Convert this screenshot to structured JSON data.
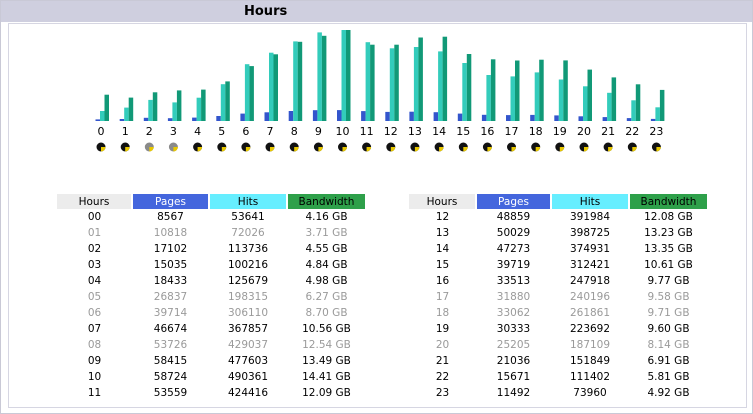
{
  "title": "Hours",
  "colors": {
    "pages": "#3355cc",
    "hits": "#33ccbb",
    "bandwidth": "#119977",
    "header_bg": "#cfcfdf"
  },
  "table": {
    "headers": [
      "Hours",
      "Pages",
      "Hits",
      "Bandwidth"
    ],
    "left": [
      [
        "00",
        "8567",
        "53641",
        "4.16 GB"
      ],
      [
        "01",
        "10818",
        "72026",
        "3.71 GB"
      ],
      [
        "02",
        "17102",
        "113736",
        "4.55 GB"
      ],
      [
        "03",
        "15035",
        "100216",
        "4.84 GB"
      ],
      [
        "04",
        "18433",
        "125679",
        "4.98 GB"
      ],
      [
        "05",
        "26837",
        "198315",
        "6.27 GB"
      ],
      [
        "06",
        "39714",
        "306110",
        "8.70 GB"
      ],
      [
        "07",
        "46674",
        "367857",
        "10.56 GB"
      ],
      [
        "08",
        "53726",
        "429037",
        "12.54 GB"
      ],
      [
        "09",
        "58415",
        "477603",
        "13.49 GB"
      ],
      [
        "10",
        "58724",
        "490361",
        "14.41 GB"
      ],
      [
        "11",
        "53559",
        "424416",
        "12.09 GB"
      ]
    ],
    "right": [
      [
        "12",
        "48859",
        "391984",
        "12.08 GB"
      ],
      [
        "13",
        "50029",
        "398725",
        "13.23 GB"
      ],
      [
        "14",
        "47273",
        "374931",
        "13.35 GB"
      ],
      [
        "15",
        "39719",
        "312421",
        "10.61 GB"
      ],
      [
        "16",
        "33513",
        "247918",
        "9.77 GB"
      ],
      [
        "17",
        "31880",
        "240196",
        "9.58 GB"
      ],
      [
        "18",
        "33062",
        "261861",
        "9.71 GB"
      ],
      [
        "19",
        "30333",
        "223692",
        "9.60 GB"
      ],
      [
        "20",
        "25205",
        "187109",
        "8.14 GB"
      ],
      [
        "21",
        "21036",
        "151849",
        "6.91 GB"
      ],
      [
        "22",
        "15671",
        "111402",
        "5.81 GB"
      ],
      [
        "23",
        "11492",
        "73960",
        "4.92 GB"
      ]
    ],
    "dim_rows_left": [
      1,
      5,
      6,
      8
    ],
    "dim_rows_right": [
      5,
      6,
      8
    ]
  },
  "chart_data": {
    "type": "bar",
    "title": "Hours",
    "categories": [
      "0",
      "1",
      "2",
      "3",
      "4",
      "5",
      "6",
      "7",
      "8",
      "9",
      "10",
      "11",
      "12",
      "13",
      "14",
      "15",
      "16",
      "17",
      "18",
      "19",
      "20",
      "21",
      "22",
      "23"
    ],
    "series": [
      {
        "name": "Pages",
        "values": [
          8567,
          10818,
          17102,
          15035,
          18433,
          26837,
          39714,
          46674,
          53726,
          58415,
          58724,
          53559,
          48859,
          50029,
          47273,
          39719,
          33513,
          31880,
          33062,
          30333,
          25205,
          21036,
          15671,
          11492
        ]
      },
      {
        "name": "Hits",
        "values": [
          53641,
          72026,
          113736,
          100216,
          125679,
          198315,
          306110,
          367857,
          429037,
          477603,
          490361,
          424416,
          391984,
          398725,
          374931,
          312421,
          247918,
          240196,
          261861,
          223692,
          187109,
          151849,
          111402,
          73960
        ]
      },
      {
        "name": "Bandwidth",
        "unit": "GB",
        "values": [
          4.16,
          3.71,
          4.55,
          4.84,
          4.98,
          6.27,
          8.7,
          10.56,
          12.54,
          13.49,
          14.41,
          12.09,
          12.08,
          13.23,
          13.35,
          10.61,
          9.77,
          9.58,
          9.71,
          9.6,
          8.14,
          6.91,
          5.81,
          4.92
        ]
      }
    ],
    "grid": false,
    "legend": "none"
  }
}
